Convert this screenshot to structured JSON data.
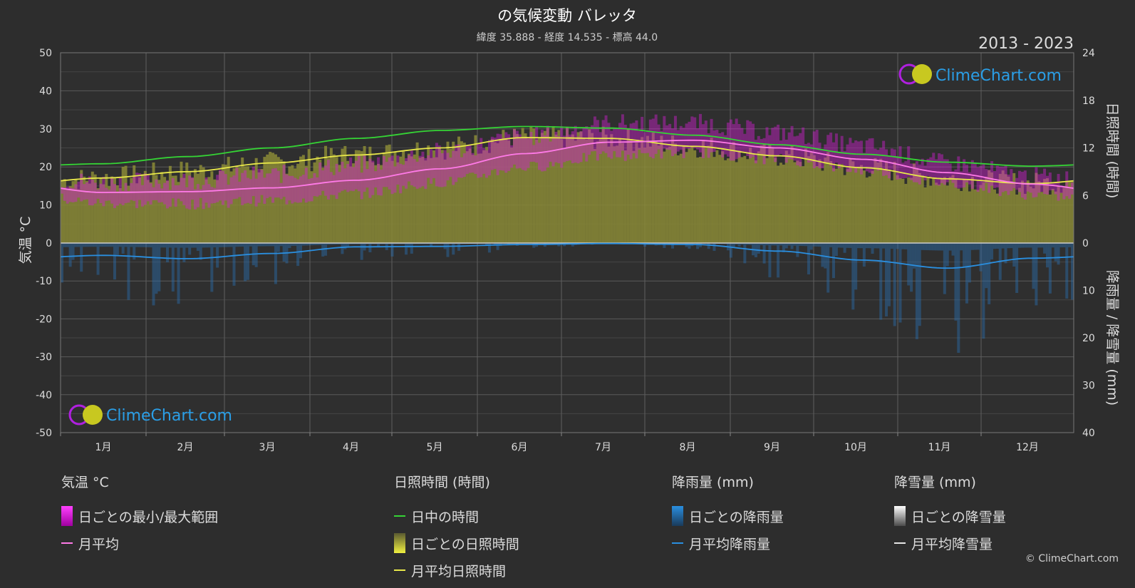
{
  "chart_data": {
    "type": "area",
    "title": "の気候変動 バレッタ",
    "subtitle": "緯度 35.888 - 経度 14.535 - 標高 44.0",
    "period": "2013 - 2023",
    "watermark": "ClimeChart.com",
    "copyright": "© ClimeChart.com",
    "categories": [
      "1月",
      "2月",
      "3月",
      "4月",
      "5月",
      "6月",
      "7月",
      "8月",
      "9月",
      "10月",
      "11月",
      "12月"
    ],
    "y_left": {
      "label": "気温 °C",
      "range": [
        -50,
        50
      ],
      "ticks": [
        "50",
        "40",
        "30",
        "20",
        "10",
        "0",
        "-10",
        "-20",
        "-30",
        "-40",
        "-50"
      ]
    },
    "y_right_top": {
      "label": "日照時間 (時間)",
      "range": [
        0,
        24
      ],
      "ticks": [
        "24",
        "18",
        "12",
        "6",
        "0"
      ]
    },
    "y_right_bottom": {
      "label": "降雨量 / 降雪量 (mm)",
      "range": [
        0,
        40
      ],
      "ticks": [
        "0",
        "10",
        "20",
        "30",
        "40"
      ]
    },
    "series": [
      {
        "name": "日中の時間",
        "axis": "sunshine_hours",
        "color": "#35d435",
        "values": [
          10.0,
          10.9,
          12.0,
          13.2,
          14.2,
          14.7,
          14.5,
          13.6,
          12.4,
          11.2,
          10.2,
          9.7
        ]
      },
      {
        "name": "月平均日照時間",
        "axis": "sunshine_hours",
        "color": "#e8e84a",
        "values": [
          8.2,
          9.0,
          10.1,
          11.1,
          12.0,
          13.3,
          13.2,
          12.2,
          11.0,
          9.5,
          8.1,
          7.5
        ]
      },
      {
        "name": "月平均",
        "axis": "temperature_c",
        "color": "#ff7ae8",
        "values": [
          13.3,
          13.5,
          14.5,
          16.5,
          19.5,
          23.5,
          26.5,
          27.0,
          25.0,
          22.0,
          18.5,
          15.5
        ]
      },
      {
        "name": "月平均降雨量",
        "axis": "precipitation_mm",
        "color": "#2a8fe0",
        "values": [
          2.6,
          3.3,
          2.2,
          0.8,
          0.7,
          0.3,
          0.1,
          0.3,
          1.7,
          3.6,
          5.3,
          3.2
        ]
      },
      {
        "name": "月平均降雪量",
        "axis": "precipitation_mm",
        "color": "#e6e6e6",
        "values": [
          0,
          0,
          0,
          0,
          0,
          0,
          0,
          0,
          0,
          0,
          0,
          0
        ]
      }
    ],
    "daily_temp_range": {
      "name": "日ごとの最小/最大範囲",
      "min": [
        10.5,
        10.3,
        11.2,
        13.0,
        16.0,
        20.0,
        23.0,
        23.8,
        22.0,
        19.2,
        15.8,
        12.8
      ],
      "max": [
        16.0,
        16.5,
        18.0,
        20.5,
        24.0,
        28.0,
        31.5,
        31.5,
        29.0,
        25.5,
        21.0,
        17.5
      ]
    },
    "daily_sunshine": {
      "name": "ごとの日照時間",
      "color": "#e8e84a"
    },
    "daily_rain": {
      "name": "日ごとの降雨量",
      "color": "#2a8fe0"
    },
    "daily_snow": {
      "name": "日ごとの降雪量",
      "color": "#ffffff"
    },
    "grid": true
  },
  "legend": {
    "temperature": {
      "header": "気温 °C",
      "items": [
        "日ごとの最小/最大範囲",
        "月平均"
      ]
    },
    "sunshine": {
      "header": "日照時間 (時間)",
      "items": [
        "日中の時間",
        "日ごとの日照時間",
        "月平均日照時間"
      ]
    },
    "rain": {
      "header": "降雨量 (mm)",
      "items": [
        "日ごとの降雨量",
        "月平均降雨量"
      ]
    },
    "snow": {
      "header": "降雪量 (mm)",
      "items": [
        "日ごとの降雪量",
        "月平均降雪量"
      ]
    }
  },
  "colors": {
    "background": "#2d2d2d",
    "grid": "#5a5a5a",
    "temp_range": "#d020d0",
    "sunshine_fill": "#8a8a36",
    "rain": "#2a8fe0"
  }
}
